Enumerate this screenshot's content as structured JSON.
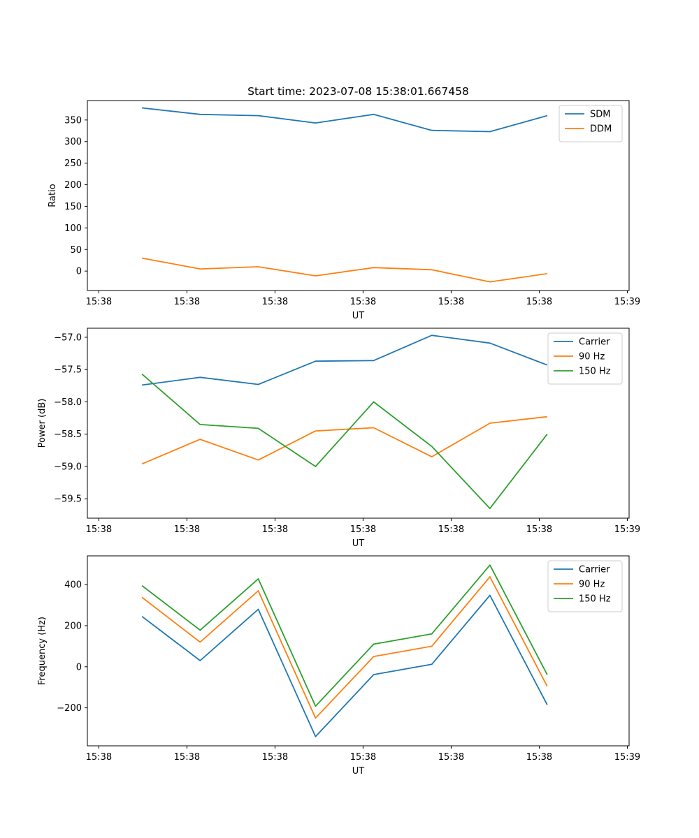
{
  "chart_data": [
    {
      "type": "line",
      "title": "Start time: 2023-07-08 15:38:01.667458",
      "xlabel": "UT",
      "ylabel": "Ratio",
      "x_tick_labels": [
        "15:38",
        "15:38",
        "15:38",
        "15:38",
        "15:38",
        "15:38",
        "15:39"
      ],
      "x_tick_values": [
        0,
        1,
        2,
        3,
        4,
        5,
        6
      ],
      "xlim": [
        -0.13,
        6.02
      ],
      "ylim": [
        -45,
        395
      ],
      "y_ticks": [
        0,
        50,
        100,
        150,
        200,
        250,
        300,
        350
      ],
      "y_tick_labels": [
        "0",
        "50",
        "100",
        "150",
        "200",
        "250",
        "300",
        "350"
      ],
      "x": [
        0.49,
        1.15,
        1.81,
        2.46,
        3.12,
        3.78,
        4.44,
        5.09
      ],
      "series": [
        {
          "name": "SDM",
          "color": "#1f77b4",
          "values": [
            378,
            363,
            360,
            343,
            363,
            326,
            323,
            360
          ]
        },
        {
          "name": "DDM",
          "color": "#ff7f0e",
          "values": [
            30,
            5,
            10,
            -11,
            8,
            3,
            -25,
            -6
          ]
        }
      ],
      "legend": "upper right",
      "grid": false
    },
    {
      "type": "line",
      "title": "",
      "xlabel": "UT",
      "ylabel": "Power (dB)",
      "x_tick_labels": [
        "15:38",
        "15:38",
        "15:38",
        "15:38",
        "15:38",
        "15:38",
        "15:39"
      ],
      "x_tick_values": [
        0,
        1,
        2,
        3,
        4,
        5,
        6
      ],
      "xlim": [
        -0.13,
        6.02
      ],
      "ylim": [
        -59.8,
        -56.86
      ],
      "y_ticks": [
        -59.5,
        -59.0,
        -58.5,
        -58.0,
        -57.5,
        -57.0
      ],
      "y_tick_labels": [
        "−59.5",
        "−59.0",
        "−58.5",
        "−58.0",
        "−57.5",
        "−57.0"
      ],
      "x": [
        0.49,
        1.15,
        1.81,
        2.46,
        3.12,
        3.78,
        4.44,
        5.09
      ],
      "series": [
        {
          "name": "Carrier",
          "color": "#1f77b4",
          "values": [
            -57.74,
            -57.62,
            -57.73,
            -57.37,
            -57.36,
            -56.97,
            -57.09,
            -57.43
          ]
        },
        {
          "name": "90 Hz",
          "color": "#ff7f0e",
          "values": [
            -58.96,
            -58.58,
            -58.9,
            -58.45,
            -58.4,
            -58.85,
            -58.33,
            -58.23
          ]
        },
        {
          "name": "150 Hz",
          "color": "#2ca02c",
          "values": [
            -57.57,
            -58.35,
            -58.41,
            -59.0,
            -58.0,
            -58.69,
            -59.65,
            -58.5
          ]
        }
      ],
      "legend": "upper right",
      "grid": false
    },
    {
      "type": "line",
      "title": "",
      "xlabel": "UT",
      "ylabel": "Frequency (Hz)",
      "x_tick_labels": [
        "15:38",
        "15:38",
        "15:38",
        "15:38",
        "15:38",
        "15:38",
        "15:39"
      ],
      "x_tick_values": [
        0,
        1,
        2,
        3,
        4,
        5,
        6
      ],
      "xlim": [
        -0.13,
        6.02
      ],
      "ylim": [
        -385,
        540
      ],
      "y_ticks": [
        -200,
        0,
        200,
        400
      ],
      "y_tick_labels": [
        "−200",
        "0",
        "200",
        "400"
      ],
      "x": [
        0.49,
        1.15,
        1.81,
        2.46,
        3.12,
        3.78,
        4.44,
        5.09
      ],
      "series": [
        {
          "name": "Carrier",
          "color": "#1f77b4",
          "values": [
            245,
            30,
            280,
            -340,
            -38,
            12,
            348,
            -185
          ]
        },
        {
          "name": "90 Hz",
          "color": "#ff7f0e",
          "values": [
            338,
            120,
            370,
            -250,
            50,
            100,
            438,
            -95
          ]
        },
        {
          "name": "150 Hz",
          "color": "#2ca02c",
          "values": [
            395,
            178,
            428,
            -192,
            110,
            160,
            495,
            -38
          ]
        }
      ],
      "legend": "upper right",
      "grid": false
    }
  ]
}
